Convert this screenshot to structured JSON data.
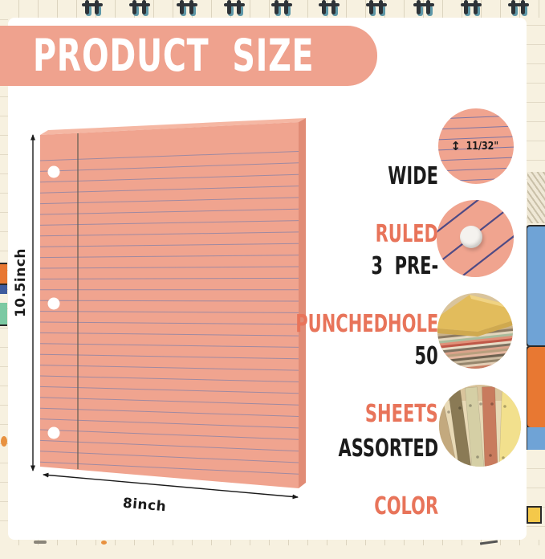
{
  "header": {
    "title": "PRODUCT  SIZE"
  },
  "dimensions": {
    "height": "10.5inch",
    "width": "8inch"
  },
  "features": [
    {
      "line1": "WIDE",
      "line2": "RULED",
      "annotation": "11/32\"",
      "icon": "wide-ruled-circle"
    },
    {
      "line1": "3  PRE-",
      "line2": "PUNCHEDHOLE",
      "icon": "punched-hole-circle"
    },
    {
      "line1": "50",
      "line2": "SHEETS",
      "icon": "sheets-stack-photo"
    },
    {
      "line1": "ASSORTED",
      "line2": "COLOR",
      "icon": "assorted-colors-photo"
    }
  ],
  "colors": {
    "banner": "#EFA28E",
    "paper": "#F0A48F",
    "paper_side": "#E18C76",
    "label_accent": "#E8745A",
    "rule_line": "#8C83A6",
    "diagonal_line": "#4E4A85",
    "text_black": "#1B1B1B",
    "background_cream": "#F7F1E0"
  }
}
